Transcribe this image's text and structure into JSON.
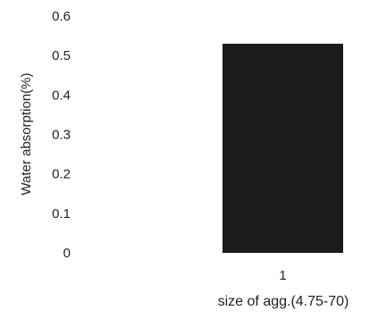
{
  "chart_data": {
    "type": "bar",
    "categories": [
      "1"
    ],
    "values": [
      0.53
    ],
    "title": "",
    "xlabel": "size of agg.(4.75-70)",
    "ylabel": "Water absorption(%)",
    "ylim": [
      0,
      0.6
    ],
    "yticks": [
      "0",
      "0.1",
      "0.2",
      "0.3",
      "0.4",
      "0.5",
      "0.6"
    ],
    "grid": false,
    "legend": "none",
    "bar_color": "#1c1c1c"
  }
}
